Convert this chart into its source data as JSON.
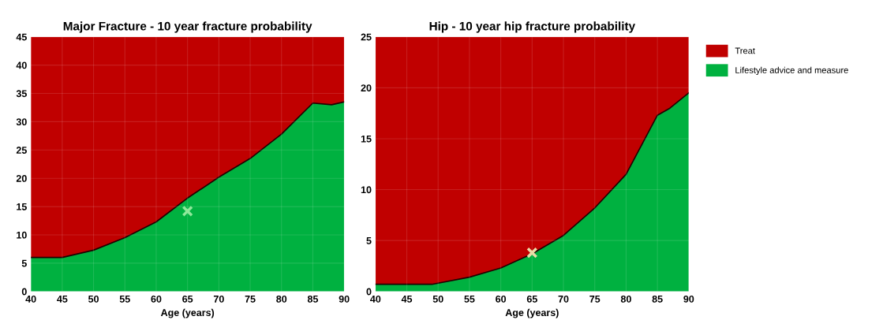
{
  "chart_data": [
    {
      "type": "area",
      "title": "Major Fracture - 10 year fracture probability",
      "xlabel": "Age (years)",
      "stacked": true,
      "xlim": [
        40,
        90
      ],
      "xticks": [
        40,
        45,
        50,
        55,
        60,
        65,
        70,
        75,
        80,
        85,
        90
      ],
      "ylim": [
        0,
        45
      ],
      "yticks": [
        0,
        5,
        10,
        15,
        20,
        25,
        30,
        35,
        40,
        45
      ],
      "grid": true,
      "legend": false,
      "x": [
        40,
        45,
        50,
        55,
        60,
        65,
        70,
        75,
        80,
        85,
        88,
        90
      ],
      "series": [
        {
          "color": "#00b140",
          "values": [
            6,
            6,
            7.3,
            9.5,
            12.3,
            16.5,
            20.2,
            23.5,
            27.8,
            33.3,
            33,
            33.5
          ]
        },
        {
          "color": "#c00000",
          "values": [
            39,
            39,
            37.7,
            35.5,
            32.7,
            28.5,
            24.8,
            21.5,
            17.2,
            11.7,
            12,
            11.5
          ]
        },
        {
          "type": "scatter",
          "color": "#8ee89a",
          "marker": "cross",
          "x": [
            65
          ],
          "values": [
            14.2
          ]
        }
      ]
    },
    {
      "type": "area",
      "title": "Hip - 10 year hip fracture probability",
      "xlabel": "Age (years)",
      "stacked": true,
      "xlim": [
        40,
        90
      ],
      "xticks": [
        40,
        45,
        50,
        55,
        60,
        65,
        70,
        75,
        80,
        85,
        90
      ],
      "ylim": [
        0,
        25
      ],
      "yticks": [
        0,
        5,
        10,
        15,
        20,
        25
      ],
      "grid": true,
      "legend": "right",
      "x": [
        40,
        45,
        49,
        55,
        60,
        65,
        70,
        75,
        80,
        85,
        87,
        90
      ],
      "series": [
        {
          "name": "Lifestyle advice and measure",
          "color": "#00b140",
          "values": [
            0.7,
            0.7,
            0.7,
            1.4,
            2.3,
            3.7,
            5.5,
            8.2,
            11.5,
            17.3,
            18,
            19.5
          ]
        },
        {
          "name": "Treat",
          "color": "#c00000",
          "values": [
            24.3,
            24.3,
            24.3,
            23.6,
            22.7,
            21.3,
            19.5,
            16.8,
            13.5,
            7.7,
            7,
            5.5
          ]
        },
        {
          "type": "scatter",
          "color": "#eadca8",
          "marker": "cross",
          "x": [
            65
          ],
          "values": [
            3.8
          ]
        }
      ]
    }
  ]
}
